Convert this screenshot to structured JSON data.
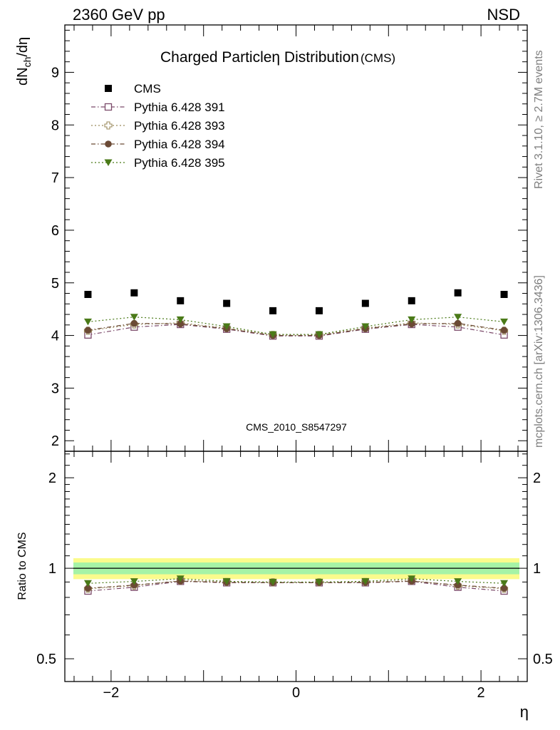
{
  "header": {
    "left": "2360 GeV pp",
    "right": "NSD"
  },
  "side_labels": {
    "rivet": "Rivet 3.1.10, ≥ 2.7M events",
    "mcplots": "mcplots.cern.ch [arXiv:1306.3436]"
  },
  "watermark": "CMS_2010_S8547297",
  "chart_data": [
    {
      "type": "scatter",
      "title": "Charged Particleη Distribution",
      "title_suffix": "(CMS)",
      "ylabel": "dN_ch/dη",
      "xlabel": "η",
      "xlim": [
        -2.5,
        2.5
      ],
      "ylim": [
        1.8,
        9.9
      ],
      "x": [
        -2.25,
        -1.75,
        -1.25,
        -0.75,
        -0.25,
        0.25,
        0.75,
        1.25,
        1.75,
        2.25
      ],
      "y_ticks": [
        2,
        3,
        4,
        5,
        6,
        7,
        8,
        9
      ],
      "x_ticks": [
        -2,
        0,
        2
      ],
      "x_tick_labels": [
        "−2",
        "0",
        "2"
      ],
      "legend_position": "top-left",
      "series": [
        {
          "name": "CMS",
          "marker": "square-filled",
          "color": "#000000",
          "line": "none",
          "values": [
            4.78,
            4.81,
            4.66,
            4.61,
            4.47,
            4.47,
            4.61,
            4.66,
            4.81,
            4.78
          ]
        },
        {
          "name": "Pythia 6.428 391",
          "marker": "square-open",
          "color": "#7b4a6a",
          "line": "dashdot",
          "values": [
            4.01,
            4.16,
            4.21,
            4.12,
            3.99,
            3.99,
            4.12,
            4.21,
            4.16,
            4.01
          ]
        },
        {
          "name": "Pythia 6.428 393",
          "marker": "cross-open",
          "color": "#9a8a5c",
          "line": "dotted",
          "values": [
            4.09,
            4.21,
            4.24,
            4.14,
            4.01,
            4.01,
            4.14,
            4.24,
            4.21,
            4.09
          ]
        },
        {
          "name": "Pythia 6.428 394",
          "marker": "circle-filled",
          "color": "#6b4a35",
          "line": "dashdot",
          "values": [
            4.1,
            4.23,
            4.22,
            4.13,
            4.0,
            4.0,
            4.13,
            4.22,
            4.23,
            4.1
          ]
        },
        {
          "name": "Pythia 6.428 395",
          "marker": "triangle-down-filled",
          "color": "#4a7a18",
          "line": "dotted",
          "values": [
            4.26,
            4.35,
            4.3,
            4.17,
            4.02,
            4.02,
            4.17,
            4.3,
            4.35,
            4.26
          ]
        }
      ]
    },
    {
      "type": "scatter",
      "ylabel": "Ratio to CMS",
      "xlabel": "η",
      "xlim": [
        -2.5,
        2.5
      ],
      "ylim": [
        0.42,
        2.45
      ],
      "y_scale": "log",
      "y_ticks": [
        0.5,
        1,
        2
      ],
      "y_tick_labels": [
        "0.5",
        "1",
        "2"
      ],
      "x": [
        -2.25,
        -1.75,
        -1.25,
        -0.75,
        -0.25,
        0.25,
        0.75,
        1.25,
        1.75,
        2.25
      ],
      "reference_line": 1,
      "band_outer": [
        0.92,
        1.08
      ],
      "band_inner": [
        0.955,
        1.045
      ],
      "series": [
        {
          "name": "Pythia 6.428 391",
          "values": [
            0.84,
            0.865,
            0.905,
            0.895,
            0.895,
            0.895,
            0.895,
            0.905,
            0.865,
            0.84
          ]
        },
        {
          "name": "Pythia 6.428 393",
          "values": [
            0.855,
            0.875,
            0.91,
            0.9,
            0.898,
            0.898,
            0.9,
            0.91,
            0.875,
            0.855
          ]
        },
        {
          "name": "Pythia 6.428 394",
          "values": [
            0.858,
            0.879,
            0.906,
            0.897,
            0.896,
            0.896,
            0.897,
            0.906,
            0.879,
            0.858
          ]
        },
        {
          "name": "Pythia 6.428 395",
          "values": [
            0.891,
            0.904,
            0.923,
            0.905,
            0.9,
            0.9,
            0.905,
            0.923,
            0.904,
            0.891
          ]
        }
      ]
    }
  ]
}
